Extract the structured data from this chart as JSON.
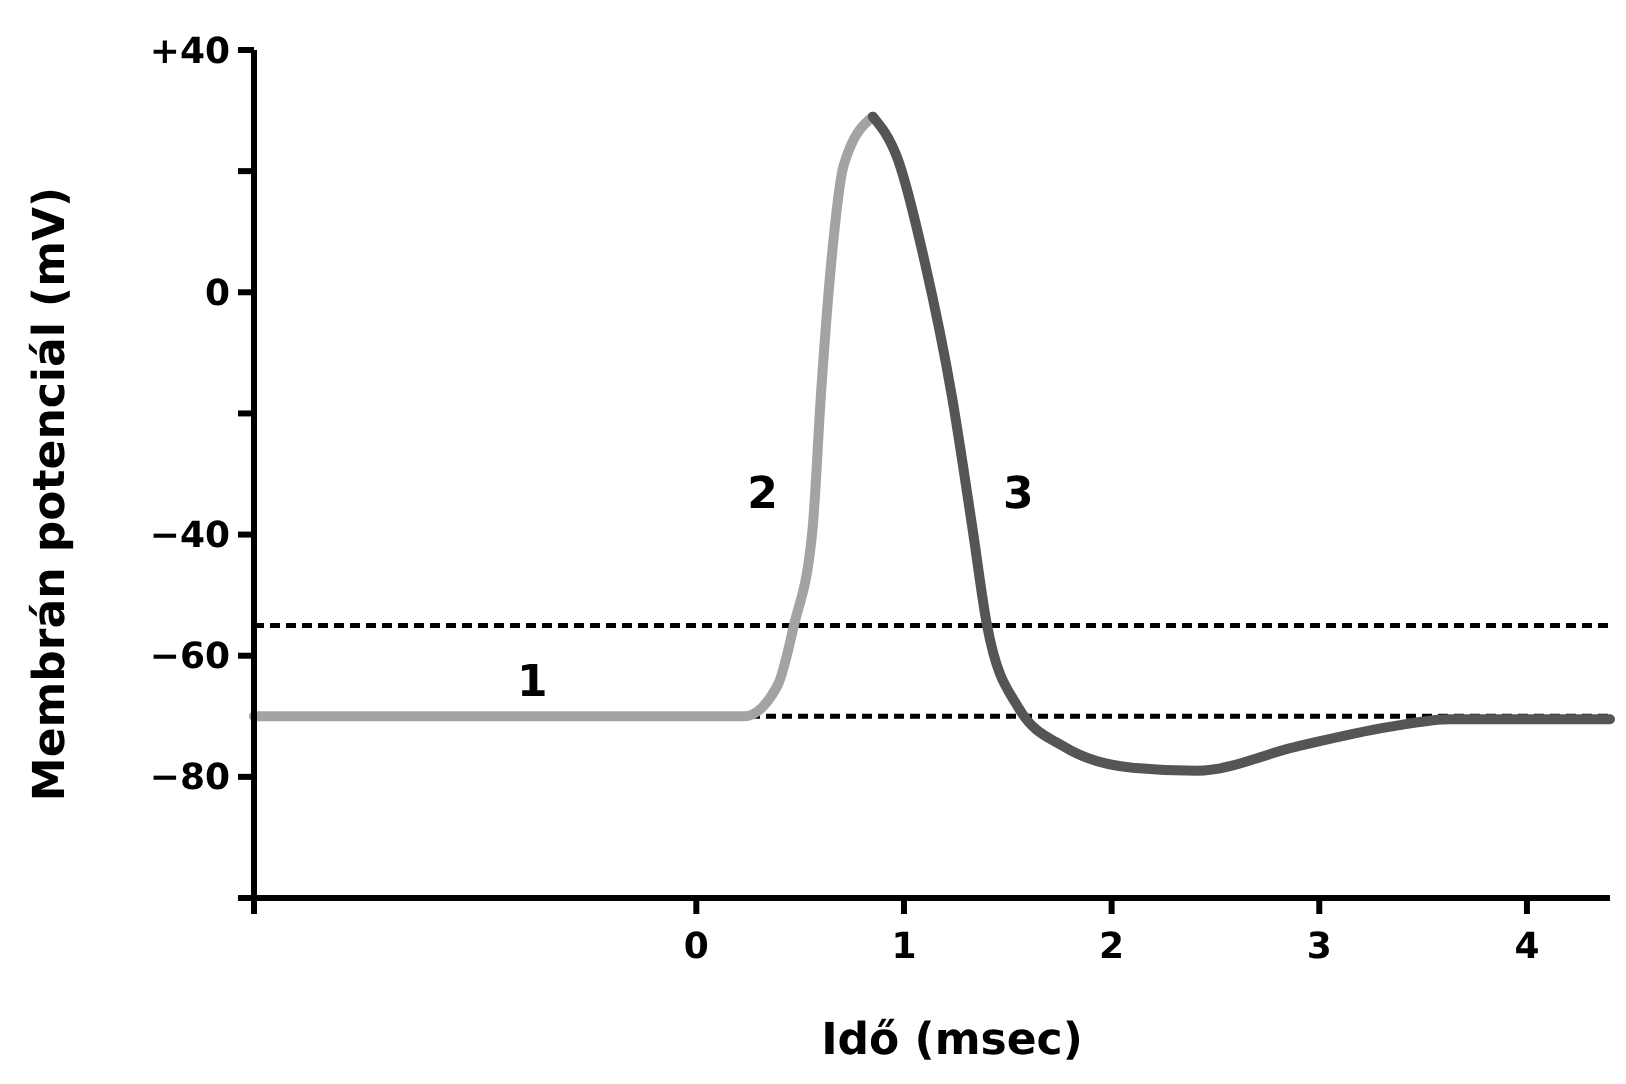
{
  "chart_data": {
    "type": "line",
    "xlabel": "Idő (msec)",
    "ylabel": "Membrán potenciál (mV)",
    "xlim": [
      -2.13,
      4.4
    ],
    "xticks": [
      {
        "value": -2.13,
        "label": null
      },
      0,
      1,
      2,
      3,
      4
    ],
    "ylim": [
      -100,
      40
    ],
    "yticks": [
      {
        "value": 40,
        "label": "+40"
      },
      {
        "value": 20,
        "label": null
      },
      0,
      {
        "value": -20,
        "label": null
      },
      {
        "value": -40,
        "label": "−40"
      },
      {
        "value": -60,
        "label": "−60"
      },
      {
        "value": -80,
        "label": "−80"
      },
      {
        "value": -100,
        "label": null
      }
    ],
    "grid": false,
    "marker": "none",
    "line_style": "solid",
    "series": [
      {
        "color": "#a3a3a3",
        "x": [
          -2.13,
          0,
          0.23,
          0.39,
          0.47,
          0.56,
          0.6,
          0.65,
          0.71,
          0.85
        ],
        "values": [
          -70,
          -70,
          -70,
          -65,
          -55,
          -39,
          -17,
          5,
          21,
          29
        ]
      },
      {
        "color": "#555555",
        "x": [
          0.85,
          0.97,
          1.1,
          1.23,
          1.33,
          1.4,
          1.55,
          1.77,
          2.1,
          2.41,
          2.89,
          3.38,
          3.63,
          4.4
        ],
        "values": [
          29,
          22,
          5,
          -17,
          -39,
          -55,
          -68.5,
          -75,
          -78.5,
          -79,
          -75,
          -71.5,
          -70.5,
          -70.5
        ]
      }
    ],
    "ref_lines": [
      {
        "axis": "y",
        "value": -55,
        "color": "#000000",
        "line_style": "dashed"
      },
      {
        "axis": "y",
        "value": -70,
        "color": "#000000",
        "line_style": "dashed"
      }
    ],
    "annotations": [
      {
        "text": "1",
        "x": -0.79,
        "y": -70
      },
      {
        "text": "2",
        "x": 0.57,
        "y": -33
      },
      {
        "text": "3",
        "x": 1.3,
        "y": -33
      }
    ]
  }
}
